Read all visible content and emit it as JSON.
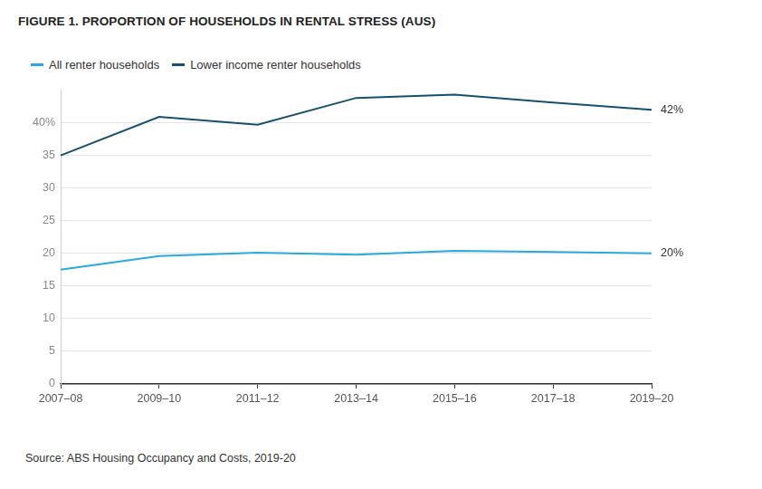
{
  "chart_data": {
    "type": "line",
    "title": "FIGURE 1. PROPORTION OF HOUSEHOLDS IN RENTAL STRESS (AUS)",
    "source": "Source: ABS Housing Occupancy and Costs, 2019-20",
    "categories": [
      "2007–08",
      "2009–10",
      "2011–12",
      "2013–14",
      "2015–16",
      "2017–18",
      "2019–20"
    ],
    "series": [
      {
        "name": "All renter households",
        "color": "#29a9df",
        "values": [
          17.5,
          19.6,
          20.1,
          19.8,
          20.4,
          20.2,
          20
        ]
      },
      {
        "name": "Lower income renter households",
        "color": "#16506e",
        "values": [
          35,
          40.9,
          39.7,
          43.8,
          44.3,
          43.1,
          42
        ]
      }
    ],
    "annotations": [
      {
        "text": "42%",
        "x": "2019–20",
        "y": 42
      },
      {
        "text": "20%",
        "x": "2019–20",
        "y": 20
      }
    ],
    "ylim": [
      0,
      45
    ],
    "yticks": [
      0,
      5,
      10,
      15,
      20,
      25,
      30,
      35,
      {
        "value": 40,
        "label": "40%"
      }
    ],
    "grid": true,
    "legend": "top-left"
  }
}
